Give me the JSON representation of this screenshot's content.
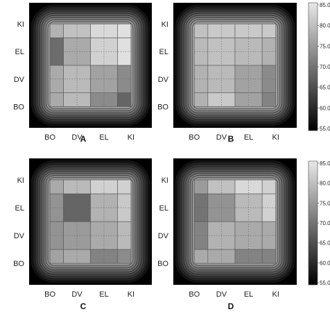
{
  "chart_data": [
    {
      "type": "heatmap",
      "panel_label": "A",
      "x_categories": [
        "BO",
        "DV",
        "EL",
        "KI"
      ],
      "y_categories": [
        "BO",
        "DV",
        "EL",
        "KI"
      ],
      "values": [
        [
          77,
          79,
          73,
          68
        ],
        [
          77,
          79,
          76,
          73
        ],
        [
          69,
          77,
          82,
          84
        ],
        [
          78,
          80,
          83,
          84
        ]
      ],
      "zlim": [
        55,
        85
      ],
      "grid": true
    },
    {
      "type": "heatmap",
      "panel_label": "B",
      "x_categories": [
        "BO",
        "DV",
        "EL",
        "KI"
      ],
      "y_categories": [
        "BO",
        "DV",
        "EL",
        "KI"
      ],
      "values": [
        [
          78,
          81,
          76,
          72
        ],
        [
          78,
          79,
          76,
          73
        ],
        [
          79,
          80,
          79,
          78
        ],
        [
          80,
          81,
          81,
          81
        ]
      ],
      "zlim": [
        55,
        85
      ],
      "grid": true
    },
    {
      "type": "heatmap",
      "panel_label": "C",
      "x_categories": [
        "BO",
        "DV",
        "EL",
        "KI"
      ],
      "y_categories": [
        "BO",
        "DV",
        "EL",
        "KI"
      ],
      "values": [
        [
          76,
          77,
          72,
          73
        ],
        [
          74,
          75,
          77,
          79
        ],
        [
          74,
          68,
          78,
          81
        ],
        [
          77,
          79,
          82,
          82
        ]
      ],
      "zlim": [
        55,
        85
      ],
      "grid": true
    },
    {
      "type": "heatmap",
      "panel_label": "D",
      "x_categories": [
        "BO",
        "DV",
        "EL",
        "KI"
      ],
      "y_categories": [
        "BO",
        "DV",
        "EL",
        "KI"
      ],
      "values": [
        [
          77,
          77,
          72,
          72
        ],
        [
          72,
          78,
          77,
          77
        ],
        [
          70,
          74,
          79,
          82
        ],
        [
          75,
          80,
          83,
          82
        ]
      ],
      "zlim": [
        55,
        85
      ],
      "grid": true
    }
  ],
  "colorbar": {
    "ticks": [
      "85.0",
      "80.0",
      "75.0",
      "70.0",
      "65.0",
      "60.0",
      "55.0"
    ],
    "range": [
      55,
      85
    ]
  }
}
